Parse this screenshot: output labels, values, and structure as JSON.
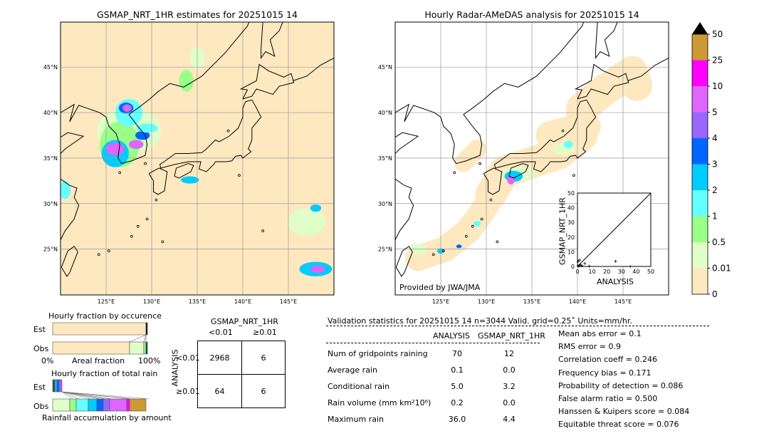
{
  "left_map": {
    "title": "GSMAP_NRT_1HR estimates for 20251015 14"
  },
  "right_map": {
    "title": "Hourly Radar-AMeDAS analysis for 20251015 14",
    "credit": "Provided by JWA/JMA"
  },
  "lon_ticks": [
    "125°E",
    "130°E",
    "135°E",
    "140°E",
    "145°E"
  ],
  "lat_ticks": [
    "45°N",
    "40°N",
    "35°N",
    "30°N",
    "25°N"
  ],
  "colorbar": {
    "labels": [
      "0",
      "0.01",
      "0.5",
      "1",
      "2",
      "3",
      "4",
      "5",
      "10",
      "25",
      "50"
    ],
    "colors": [
      "#fee8c0",
      "#e0ffc8",
      "#99ff88",
      "#66ffff",
      "#00ccff",
      "#0066ff",
      "#9966ff",
      "#dd66ff",
      "#ff00ff",
      "#cc9933"
    ],
    "extend_color": "#000000"
  },
  "chart_data": [
    {
      "type": "scatter",
      "xlabel": "ANALYSIS",
      "ylabel": "GSMAP_NRT_1HR",
      "xlim": [
        0,
        50
      ],
      "ylim": [
        0,
        50
      ],
      "xticks": [
        "0",
        "10",
        "20",
        "30",
        "40",
        "50"
      ],
      "yticks": [
        "0",
        "10",
        "20",
        "30",
        "40",
        "50"
      ],
      "points": [
        [
          0.5,
          0.2
        ],
        [
          1,
          0.5
        ],
        [
          1.5,
          4.4
        ],
        [
          0.5,
          3.5
        ],
        [
          2,
          1
        ],
        [
          3,
          0.5
        ],
        [
          5,
          2
        ],
        [
          8,
          0.2
        ],
        [
          26,
          3.5
        ],
        [
          36,
          0
        ]
      ]
    },
    {
      "type": "bar",
      "title": "Hourly fraction by occurence",
      "xlabel": "Areal fraction",
      "categories": [
        "Est",
        "Obs"
      ],
      "xtick_left": "0%",
      "xtick_right": "100%"
    },
    {
      "type": "bar",
      "title": "Hourly fraction of total rain",
      "xlabel": "Rainfall accumulation by amount",
      "categories": [
        "Est",
        "Obs"
      ]
    }
  ],
  "contingency": {
    "col_title": "GSMAP_NRT_1HR",
    "row_title": "ANALYSIS",
    "cols": [
      "<0.01",
      "≥0.01"
    ],
    "rows": [
      "<0.01",
      "≥0.01"
    ],
    "cells": [
      [
        "2968",
        "6"
      ],
      [
        "64",
        "6"
      ]
    ]
  },
  "stats": {
    "header": "Validation statistics for 20251015 14  n=3044 Valid. grid=0.25˚ Units=mm/hr.",
    "cols": [
      "ANALYSIS",
      "GSMAP_NRT_1HR"
    ],
    "rows": [
      [
        "Num of gridpoints raining",
        "70",
        "12"
      ],
      [
        "Average rain",
        "0.1",
        "0.0"
      ],
      [
        "Conditional rain",
        "5.0",
        "3.2"
      ],
      [
        "Rain volume (mm km²10⁶)",
        "0.2",
        "0.0"
      ],
      [
        "Maximum rain",
        "36.0",
        "4.4"
      ]
    ],
    "scores": [
      "Mean abs error =    0.1",
      "RMS error =    0.9",
      "Correlation coeff =  0.246",
      "Frequency bias =  0.171",
      "Probability of detection =  0.086",
      "False alarm ratio =  0.500",
      "Hanssen & Kuipers score =  0.084",
      "Equitable threat score =  0.076"
    ]
  }
}
